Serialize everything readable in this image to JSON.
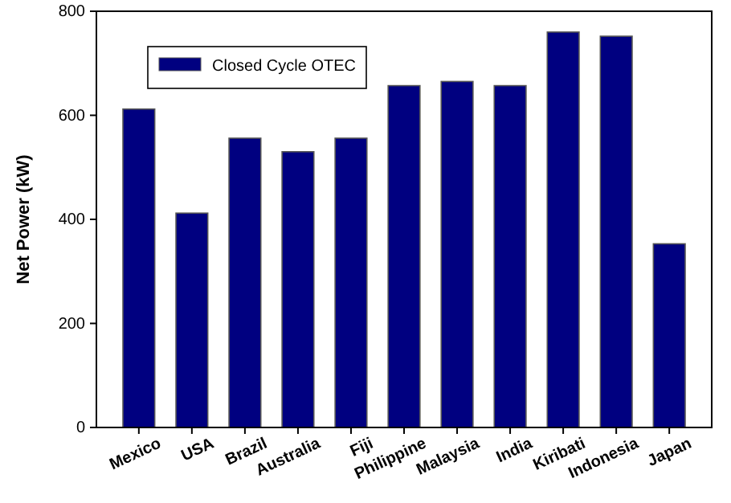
{
  "chart_data": {
    "type": "bar",
    "ylabel": "Net Power (kW)",
    "categories": [
      "Mexico",
      "USA",
      "Brazil",
      "Australia",
      "Fiji",
      "Philippine",
      "Malaysia",
      "India",
      "Kiribati",
      "Indonesia",
      "Japan"
    ],
    "series": [
      {
        "name": "Closed Cycle OTEC",
        "color": "#000080",
        "values": [
          612,
          412,
          556,
          530,
          556,
          657,
          665,
          657,
          760,
          752,
          353
        ]
      }
    ],
    "ylim": [
      0,
      800
    ],
    "yticks": [
      0,
      200,
      400,
      600,
      800
    ],
    "legend": "top left"
  }
}
